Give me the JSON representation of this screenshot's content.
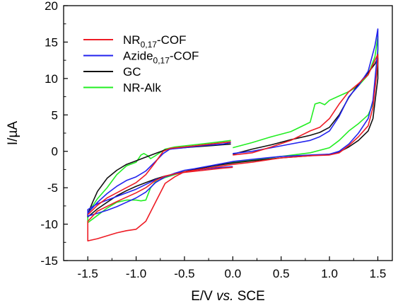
{
  "chart_data": {
    "type": "line",
    "xlabel": "E/V",
    "xlabel_italic": "vs.",
    "xlabel_tail": "SCE",
    "ylabel": "I/µA",
    "xlim": [
      -1.75,
      1.65
    ],
    "ylim": [
      -15,
      20
    ],
    "xticks": [
      -1.5,
      -1.0,
      -0.5,
      0.0,
      0.5,
      1.0,
      1.5
    ],
    "xtick_labels": [
      "-1.5",
      "-1.0",
      "-0.5",
      "0.0",
      "0.5",
      "1.0",
      "1.5"
    ],
    "yticks": [
      -15,
      -10,
      -5,
      0,
      5,
      10,
      15,
      20
    ],
    "ytick_labels": [
      "-15",
      "-10",
      "-5",
      "0",
      "5",
      "10",
      "15",
      "20"
    ],
    "grid": false,
    "legend_position": "top-left",
    "series": [
      {
        "name": "NR0,17-COF",
        "label_main": "NR",
        "label_sub": "0,17",
        "label_tail": "-COF",
        "color": "#ee1c25",
        "segments": [
          [
            [
              0.0,
              -0.5
            ],
            [
              0.2,
              -0.2
            ],
            [
              0.4,
              0.6
            ],
            [
              0.6,
              1.5
            ],
            [
              0.8,
              2.8
            ],
            [
              0.9,
              3.3
            ],
            [
              1.0,
              4.5
            ],
            [
              1.1,
              6.5
            ],
            [
              1.2,
              8.2
            ],
            [
              1.3,
              9.3
            ],
            [
              1.4,
              10.5
            ],
            [
              1.47,
              12.5
            ],
            [
              1.5,
              13.3
            ],
            [
              1.5,
              12.2
            ],
            [
              1.45,
              6.0
            ],
            [
              1.4,
              3.5
            ],
            [
              1.3,
              2.0
            ],
            [
              1.2,
              0.8
            ],
            [
              1.1,
              -0.2
            ],
            [
              1.0,
              -0.5
            ],
            [
              0.8,
              -0.6
            ],
            [
              0.5,
              -0.9
            ],
            [
              0.2,
              -1.5
            ],
            [
              0.0,
              -1.8
            ],
            [
              -0.2,
              -2.2
            ],
            [
              -0.4,
              -2.6
            ],
            [
              -0.5,
              -2.8
            ],
            [
              -0.6,
              -3.5
            ],
            [
              -0.7,
              -4.4
            ],
            [
              -0.8,
              -7.0
            ],
            [
              -0.9,
              -9.6
            ],
            [
              -1.0,
              -10.7
            ],
            [
              -1.1,
              -10.9
            ],
            [
              -1.2,
              -11.2
            ],
            [
              -1.3,
              -11.6
            ],
            [
              -1.4,
              -12.0
            ],
            [
              -1.5,
              -12.3
            ],
            [
              -1.5,
              -9.6
            ],
            [
              -1.4,
              -8.2
            ],
            [
              -1.2,
              -6.9
            ],
            [
              -1.0,
              -5.7
            ],
            [
              -0.9,
              -5.0
            ],
            [
              -0.8,
              -4.0
            ],
            [
              -0.7,
              -3.4
            ],
            [
              -0.6,
              -3.1
            ],
            [
              -0.5,
              -2.9
            ],
            [
              -0.3,
              -2.6
            ],
            [
              -0.1,
              -2.3
            ],
            [
              0.0,
              -2.2
            ]
          ],
          [
            [
              -0.02,
              1.3
            ],
            [
              -0.1,
              1.2
            ],
            [
              -0.3,
              0.9
            ],
            [
              -0.5,
              0.6
            ],
            [
              -0.65,
              0.4
            ],
            [
              -0.72,
              0.0
            ],
            [
              -0.8,
              -1.5
            ],
            [
              -0.9,
              -3.2
            ],
            [
              -1.0,
              -4.3
            ],
            [
              -1.1,
              -5.0
            ],
            [
              -1.2,
              -5.7
            ],
            [
              -1.3,
              -6.4
            ],
            [
              -1.4,
              -7.4
            ],
            [
              -1.5,
              -8.7
            ]
          ]
        ]
      },
      {
        "name": "Azide0,17-COF",
        "label_main": "Azide",
        "label_sub": "0,17",
        "label_tail": "-COF",
        "color": "#2222ee",
        "segments": [
          [
            [
              0.0,
              -0.3
            ],
            [
              0.2,
              0.0
            ],
            [
              0.4,
              0.5
            ],
            [
              0.6,
              1.0
            ],
            [
              0.8,
              1.5
            ],
            [
              0.9,
              2.0
            ],
            [
              1.0,
              2.8
            ],
            [
              1.1,
              4.8
            ],
            [
              1.2,
              7.5
            ],
            [
              1.3,
              9.0
            ],
            [
              1.4,
              11.0
            ],
            [
              1.47,
              14.5
            ],
            [
              1.5,
              16.8
            ],
            [
              1.5,
              14.0
            ],
            [
              1.45,
              7.0
            ],
            [
              1.4,
              4.5
            ],
            [
              1.3,
              2.5
            ],
            [
              1.2,
              1.0
            ],
            [
              1.1,
              0.0
            ],
            [
              1.0,
              -0.4
            ],
            [
              0.8,
              -0.5
            ],
            [
              0.5,
              -0.7
            ],
            [
              0.2,
              -1.1
            ],
            [
              0.0,
              -1.4
            ],
            [
              -0.2,
              -1.9
            ],
            [
              -0.4,
              -2.4
            ],
            [
              -0.5,
              -2.6
            ],
            [
              -0.6,
              -3.0
            ],
            [
              -0.7,
              -3.5
            ],
            [
              -0.8,
              -4.3
            ],
            [
              -0.9,
              -5.6
            ],
            [
              -1.0,
              -6.4
            ],
            [
              -1.1,
              -7.0
            ],
            [
              -1.2,
              -7.6
            ],
            [
              -1.3,
              -8.1
            ],
            [
              -1.4,
              -8.5
            ],
            [
              -1.5,
              -8.9
            ],
            [
              -1.5,
              -8.0
            ],
            [
              -1.4,
              -7.2
            ],
            [
              -1.2,
              -6.2
            ],
            [
              -1.0,
              -5.2
            ],
            [
              -0.8,
              -3.9
            ],
            [
              -0.6,
              -3.1
            ],
            [
              -0.4,
              -2.6
            ],
            [
              -0.2,
              -2.3
            ],
            [
              0.0,
              -2.1
            ]
          ],
          [
            [
              -0.02,
              1.2
            ],
            [
              -0.1,
              1.0
            ],
            [
              -0.3,
              0.8
            ],
            [
              -0.5,
              0.5
            ],
            [
              -0.65,
              0.3
            ],
            [
              -0.72,
              -0.3
            ],
            [
              -0.8,
              -1.4
            ],
            [
              -0.9,
              -2.7
            ],
            [
              -1.0,
              -3.5
            ],
            [
              -1.1,
              -4.0
            ],
            [
              -1.2,
              -4.8
            ],
            [
              -1.3,
              -5.8
            ],
            [
              -1.4,
              -7.0
            ],
            [
              -1.5,
              -8.5
            ]
          ]
        ]
      },
      {
        "name": "GC",
        "label_main": "GC",
        "label_sub": "",
        "label_tail": "",
        "color": "#111111",
        "segments": [
          [
            [
              0.0,
              -0.4
            ],
            [
              0.2,
              0.3
            ],
            [
              0.4,
              0.9
            ],
            [
              0.6,
              1.6
            ],
            [
              0.8,
              2.2
            ],
            [
              0.9,
              2.6
            ],
            [
              1.0,
              3.3
            ],
            [
              1.1,
              5.0
            ],
            [
              1.2,
              7.4
            ],
            [
              1.3,
              9.2
            ],
            [
              1.4,
              10.8
            ],
            [
              1.47,
              12.0
            ],
            [
              1.5,
              12.8
            ],
            [
              1.5,
              10.0
            ],
            [
              1.45,
              4.5
            ],
            [
              1.4,
              2.8
            ],
            [
              1.3,
              1.5
            ],
            [
              1.2,
              0.6
            ],
            [
              1.1,
              -0.1
            ],
            [
              1.0,
              -0.4
            ],
            [
              0.8,
              -0.6
            ],
            [
              0.5,
              -0.9
            ],
            [
              0.2,
              -1.3
            ],
            [
              0.0,
              -1.6
            ],
            [
              -0.2,
              -2.0
            ],
            [
              -0.4,
              -2.5
            ],
            [
              -0.5,
              -2.8
            ],
            [
              -0.6,
              -3.1
            ],
            [
              -0.7,
              -3.4
            ],
            [
              -0.8,
              -3.8
            ],
            [
              -0.9,
              -4.3
            ],
            [
              -1.0,
              -4.8
            ],
            [
              -1.1,
              -5.4
            ],
            [
              -1.2,
              -6.1
            ],
            [
              -1.3,
              -7.0
            ],
            [
              -1.4,
              -7.9
            ],
            [
              -1.5,
              -9.0
            ],
            [
              -1.5,
              -8.6
            ],
            [
              -1.45,
              -7.0
            ],
            [
              -1.4,
              -5.5
            ],
            [
              -1.3,
              -3.7
            ],
            [
              -1.2,
              -2.6
            ],
            [
              -1.1,
              -1.8
            ],
            [
              -1.0,
              -1.3
            ],
            [
              -0.9,
              -0.8
            ],
            [
              -0.8,
              -0.3
            ],
            [
              -0.7,
              0.2
            ],
            [
              -0.6,
              0.4
            ],
            [
              -0.4,
              0.6
            ],
            [
              -0.2,
              0.8
            ],
            [
              -0.02,
              1.0
            ]
          ]
        ]
      },
      {
        "name": "NR-Alk",
        "label_main": "NR-Alk",
        "label_sub": "",
        "label_tail": "",
        "color": "#22ee22",
        "segments": [
          [
            [
              0.0,
              0.5
            ],
            [
              0.2,
              1.2
            ],
            [
              0.4,
              2.0
            ],
            [
              0.6,
              2.7
            ],
            [
              0.8,
              4.0
            ],
            [
              0.85,
              6.5
            ],
            [
              0.9,
              6.7
            ],
            [
              0.95,
              6.4
            ],
            [
              1.0,
              7.0
            ],
            [
              1.1,
              7.6
            ],
            [
              1.2,
              8.2
            ],
            [
              1.3,
              9.0
            ],
            [
              1.4,
              10.5
            ],
            [
              1.47,
              13.0
            ],
            [
              1.5,
              15.8
            ],
            [
              1.5,
              12.5
            ],
            [
              1.45,
              6.5
            ],
            [
              1.4,
              5.0
            ],
            [
              1.3,
              3.8
            ],
            [
              1.2,
              2.8
            ],
            [
              1.1,
              1.5
            ],
            [
              1.0,
              0.5
            ],
            [
              0.8,
              -0.2
            ],
            [
              0.5,
              -0.7
            ],
            [
              0.2,
              -1.2
            ],
            [
              0.0,
              -1.5
            ],
            [
              -0.2,
              -2.0
            ],
            [
              -0.4,
              -2.5
            ],
            [
              -0.5,
              -2.8
            ],
            [
              -0.6,
              -3.2
            ],
            [
              -0.7,
              -3.6
            ],
            [
              -0.8,
              -4.2
            ],
            [
              -0.85,
              -5.0
            ],
            [
              -0.9,
              -6.7
            ],
            [
              -0.95,
              -6.8
            ],
            [
              -1.0,
              -6.7
            ],
            [
              -1.1,
              -6.7
            ],
            [
              -1.2,
              -7.0
            ],
            [
              -1.3,
              -7.8
            ],
            [
              -1.4,
              -8.8
            ],
            [
              -1.5,
              -9.8
            ],
            [
              -1.5,
              -8.5
            ],
            [
              -1.45,
              -7.5
            ],
            [
              -1.4,
              -6.5
            ],
            [
              -1.3,
              -5.0
            ],
            [
              -1.2,
              -3.2
            ],
            [
              -1.1,
              -2.0
            ],
            [
              -1.0,
              -1.5
            ],
            [
              -0.95,
              -0.5
            ],
            [
              -0.92,
              -0.3
            ],
            [
              -0.88,
              -0.6
            ],
            [
              -0.85,
              -1.0
            ],
            [
              -0.8,
              -0.6
            ],
            [
              -0.7,
              0.3
            ],
            [
              -0.6,
              0.6
            ],
            [
              -0.4,
              0.9
            ],
            [
              -0.2,
              1.2
            ],
            [
              -0.02,
              1.5
            ]
          ]
        ]
      }
    ]
  }
}
